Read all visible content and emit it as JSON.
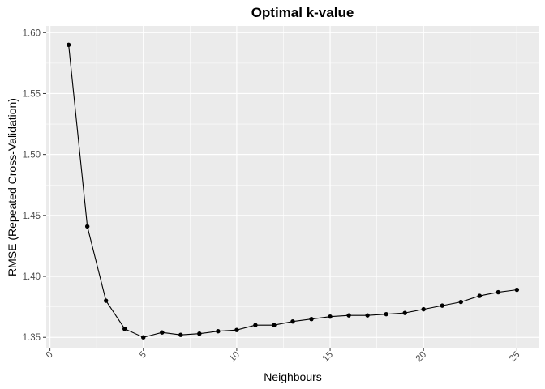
{
  "chart_data": {
    "type": "line",
    "title": "Optimal k-value",
    "xlabel": "Neighbours",
    "ylabel": "RMSE (Repeated Cross-Validation)",
    "xlim": [
      -0.2,
      26.2
    ],
    "ylim": [
      1.3415,
      1.6055
    ],
    "x_ticks": [
      0,
      5,
      10,
      15,
      20,
      25
    ],
    "x_tick_labels": [
      "0",
      "5",
      "10",
      "15",
      "20",
      "25"
    ],
    "y_ticks": [
      1.35,
      1.4,
      1.45,
      1.5,
      1.55,
      1.6
    ],
    "y_tick_labels": [
      "1.35",
      "1.40",
      "1.45",
      "1.50",
      "1.55",
      "1.60"
    ],
    "grid": true,
    "legend": "none",
    "colors": {
      "panel": "#ebebeb",
      "grid": "#ffffff",
      "series": "#000000"
    },
    "series": [
      {
        "x": [
          1,
          2,
          3,
          4,
          5,
          6,
          7,
          8,
          9,
          10,
          11,
          12,
          13,
          14,
          15,
          16,
          17,
          18,
          19,
          20,
          21,
          22,
          23,
          24,
          25
        ],
        "y": [
          1.59,
          1.441,
          1.38,
          1.357,
          1.35,
          1.354,
          1.352,
          1.353,
          1.355,
          1.356,
          1.36,
          1.36,
          1.363,
          1.365,
          1.367,
          1.368,
          1.368,
          1.369,
          1.37,
          1.373,
          1.376,
          1.379,
          1.384,
          1.387,
          1.389
        ]
      }
    ]
  }
}
